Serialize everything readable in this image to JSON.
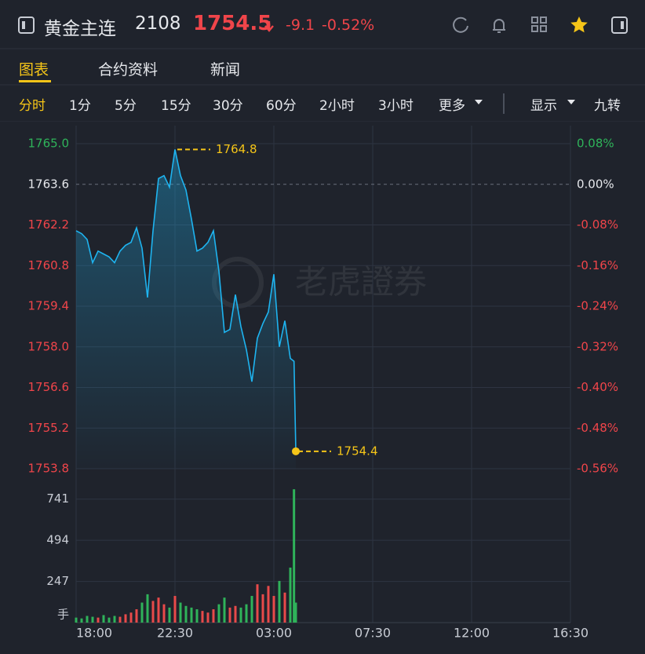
{
  "header": {
    "title": "黄金主连",
    "code": "2108",
    "price": "1754.5",
    "change": "-9.1",
    "change_pct": "-0.52%"
  },
  "tabs": [
    "图表",
    "合约资料",
    "新闻"
  ],
  "periods": [
    "分时",
    "1分",
    "5分",
    "15分",
    "30分",
    "60分",
    "2小时",
    "3小时",
    "更多",
    "显示",
    "九转"
  ],
  "watermark": "老虎證券",
  "chart_data": [
    {
      "type": "line",
      "color": "#1eb4f0",
      "x": [
        "18:00",
        "18:15",
        "18:30",
        "18:45",
        "19:00",
        "19:15",
        "19:30",
        "19:45",
        "20:00",
        "20:15",
        "20:30",
        "20:45",
        "21:00",
        "21:15",
        "21:30",
        "21:45",
        "22:00",
        "22:15",
        "22:30",
        "22:45",
        "23:00",
        "23:15",
        "23:30",
        "23:45",
        "00:00",
        "00:15",
        "00:30",
        "00:45",
        "01:00",
        "01:15",
        "01:30",
        "01:45",
        "02:00",
        "02:15",
        "02:30",
        "02:45",
        "03:00",
        "03:15",
        "03:30",
        "03:45",
        "03:55",
        "04:00"
      ],
      "values": [
        1762.0,
        1761.9,
        1761.7,
        1760.9,
        1761.3,
        1761.2,
        1761.1,
        1760.9,
        1761.3,
        1761.5,
        1761.6,
        1762.1,
        1761.4,
        1759.7,
        1762.0,
        1763.8,
        1763.9,
        1763.5,
        1764.8,
        1763.9,
        1763.4,
        1762.4,
        1761.3,
        1761.4,
        1761.6,
        1762.0,
        1760.6,
        1758.5,
        1758.6,
        1759.8,
        1758.7,
        1757.9,
        1756.8,
        1758.3,
        1758.8,
        1759.2,
        1760.5,
        1758.0,
        1758.9,
        1757.6,
        1757.5,
        1754.4
      ],
      "xlim": [
        "18:00",
        "16:30"
      ],
      "xticks": [
        "18:00",
        "22:30",
        "03:00",
        "07:30",
        "12:00",
        "16:30"
      ],
      "ylim": [
        1753.8,
        1765.0
      ],
      "yticks": [
        {
          "value": 1765.0,
          "label": "1765.0"
        },
        1763.6,
        1762.2,
        1760.8,
        1759.4,
        {
          "value": 1758.0,
          "label": "1758.0"
        },
        1756.6,
        1755.2,
        1753.8
      ],
      "reference": 1763.6,
      "y2lim": [
        -0.56,
        0.08
      ],
      "y2ticks": [
        {
          "value": 0.08,
          "label": "0.08%"
        },
        {
          "value": 0,
          "label": "0.00%"
        },
        {
          "value": -0.08,
          "label": "-0.08%"
        },
        {
          "value": -0.16,
          "label": "-0.16%"
        },
        {
          "value": -0.24,
          "label": "-0.24%"
        },
        {
          "value": -0.32,
          "label": "-0.32%"
        },
        {
          "value": -0.4,
          "label": "-0.40%"
        },
        {
          "value": -0.48,
          "label": "-0.48%"
        },
        {
          "value": -0.56,
          "label": "-0.56%"
        }
      ],
      "annotations": [
        {
          "x": "22:30",
          "value": 1764.8
        },
        {
          "x": "04:00",
          "value": 1754.4
        }
      ],
      "annotation_color": "#f5c518",
      "up_color": "#2fb35a",
      "down_color": "#f0454a",
      "grid": true
    },
    {
      "type": "bar",
      "unit": "手",
      "x": [
        "18:00",
        "18:15",
        "18:30",
        "18:45",
        "19:00",
        "19:15",
        "19:30",
        "19:45",
        "20:00",
        "20:15",
        "20:30",
        "20:45",
        "21:00",
        "21:15",
        "21:30",
        "21:45",
        "22:00",
        "22:15",
        "22:30",
        "22:45",
        "23:00",
        "23:15",
        "23:30",
        "23:45",
        "00:00",
        "00:15",
        "00:30",
        "00:45",
        "01:00",
        "01:15",
        "01:30",
        "01:45",
        "02:00",
        "02:15",
        "02:30",
        "02:45",
        "03:00",
        "03:15",
        "03:30",
        "03:45",
        "03:55",
        "04:00"
      ],
      "values": [
        30,
        25,
        40,
        35,
        30,
        45,
        30,
        40,
        35,
        50,
        60,
        80,
        120,
        170,
        130,
        150,
        110,
        90,
        160,
        120,
        100,
        90,
        80,
        70,
        60,
        80,
        110,
        150,
        90,
        100,
        90,
        110,
        160,
        230,
        170,
        220,
        160,
        250,
        180,
        330,
        800,
        120
      ],
      "ylim": [
        0,
        815
      ],
      "yticks": [
        247,
        494,
        741
      ],
      "up_color": "#e84a4a",
      "down_color": "#2fb35a"
    }
  ]
}
